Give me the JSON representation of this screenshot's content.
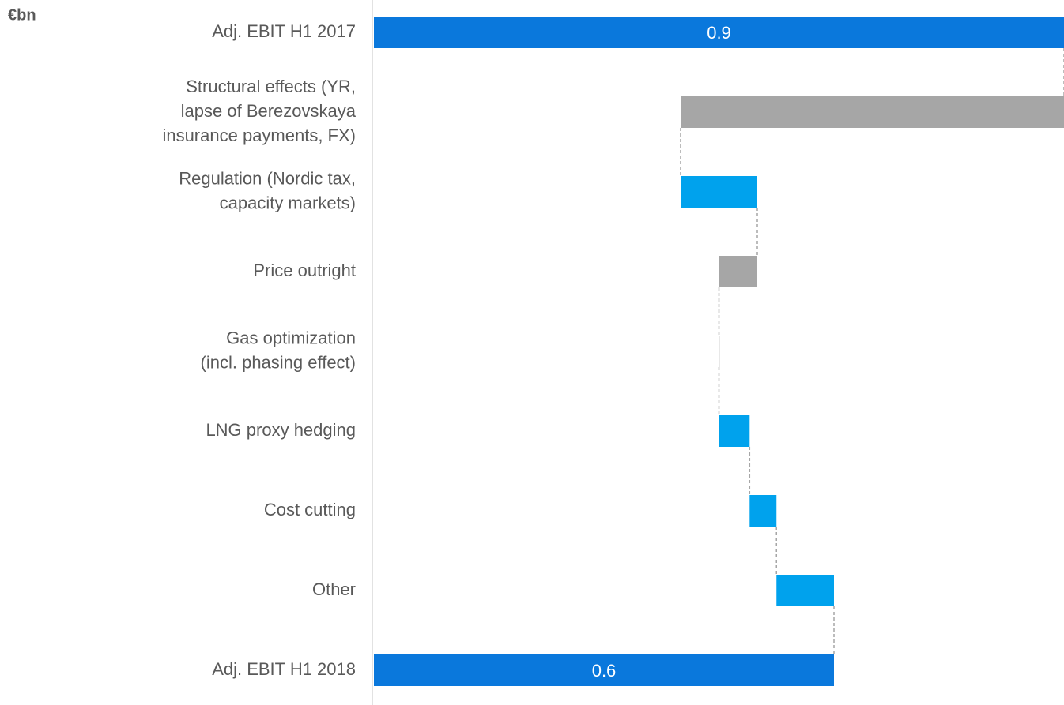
{
  "chart_data": {
    "type": "waterfall",
    "unit_label": "€bn",
    "categories": [
      [
        "Adj. EBIT H1 2017"
      ],
      [
        "Structural effects (YR,",
        "lapse of Berezovskaya",
        "insurance payments, FX)"
      ],
      [
        "Regulation (Nordic tax,",
        "capacity markets)"
      ],
      [
        "Price outright"
      ],
      [
        "Gas optimization",
        "(incl. phasing effect)"
      ],
      [
        "LNG proxy hedging"
      ],
      [
        "Cost cutting"
      ],
      [
        "Other"
      ],
      [
        "Adj. EBIT H1 2018"
      ]
    ],
    "values": [
      0.9,
      -0.5,
      0.1,
      -0.05,
      0,
      0.04,
      0.035,
      0.075,
      0.6
    ],
    "totals": [
      true,
      false,
      false,
      false,
      false,
      false,
      false,
      false,
      true
    ],
    "total_color": "#0a78dc",
    "increase_color": "#00a2ed",
    "decrease_color": "#a6a6a6",
    "xlim": [
      0,
      0.9
    ]
  }
}
